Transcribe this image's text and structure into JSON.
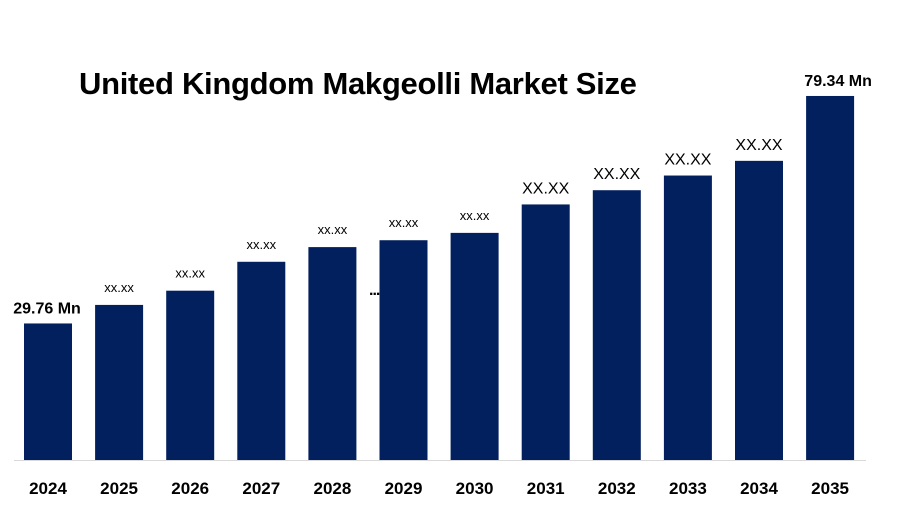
{
  "title": "United Kingdom Makgeolli Market Size",
  "chart_data": {
    "type": "bar",
    "title": "United Kingdom Makgeolli Market Size",
    "categories": [
      "2024",
      "2025",
      "2026",
      "2027",
      "2028",
      "2029",
      "2030",
      "2031",
      "2032",
      "2033",
      "2034",
      "2035"
    ],
    "values": [
      29.76,
      33.8,
      36.9,
      43.2,
      46.4,
      47.9,
      49.5,
      55.7,
      58.8,
      62.0,
      65.2,
      79.34
    ],
    "data_labels": [
      "29.76 Mn",
      "xx.xx",
      "xx.xx",
      "xx.xx",
      "xx.xx",
      "xx.xx",
      "xx.xx",
      "XX.XX",
      "XX.XX",
      "XX.XX",
      "XX.XX",
      "79.34 Mn"
    ],
    "ylim": [
      0,
      85
    ],
    "bar_color": "#02205e",
    "grid": false,
    "legend": "none",
    "annotation": "..."
  }
}
